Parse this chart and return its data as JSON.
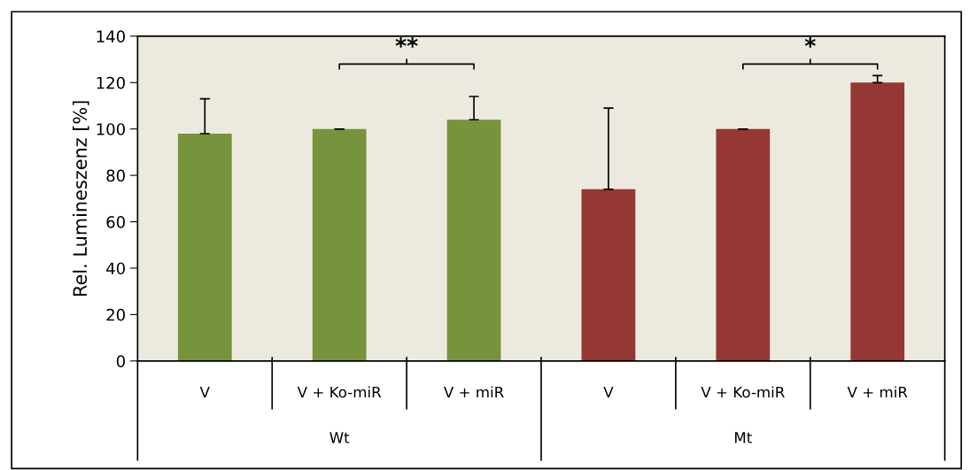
{
  "chart_data": {
    "type": "bar",
    "ylabel": "Rel. Lumineszenz [%]",
    "categories": [
      "V",
      "V + Ko-miR",
      "V + miR",
      "V",
      "V + Ko-miR",
      "V + miR"
    ],
    "values": [
      98,
      100,
      104,
      74,
      100,
      120
    ],
    "errors": [
      [
        98,
        113
      ],
      [
        100,
        100
      ],
      [
        104,
        114
      ],
      [
        74,
        109
      ],
      [
        100,
        100
      ],
      [
        120,
        123
      ]
    ],
    "colors": [
      "#77933c",
      "#77933c",
      "#77933c",
      "#953735",
      "#953735",
      "#953735"
    ],
    "ylim": [
      0,
      140
    ],
    "yticks": [
      0,
      20,
      40,
      60,
      80,
      100,
      120,
      140
    ],
    "grid": false,
    "legend": false,
    "annotations": [
      "**",
      "*",
      "Wt",
      "Mt"
    ]
  }
}
